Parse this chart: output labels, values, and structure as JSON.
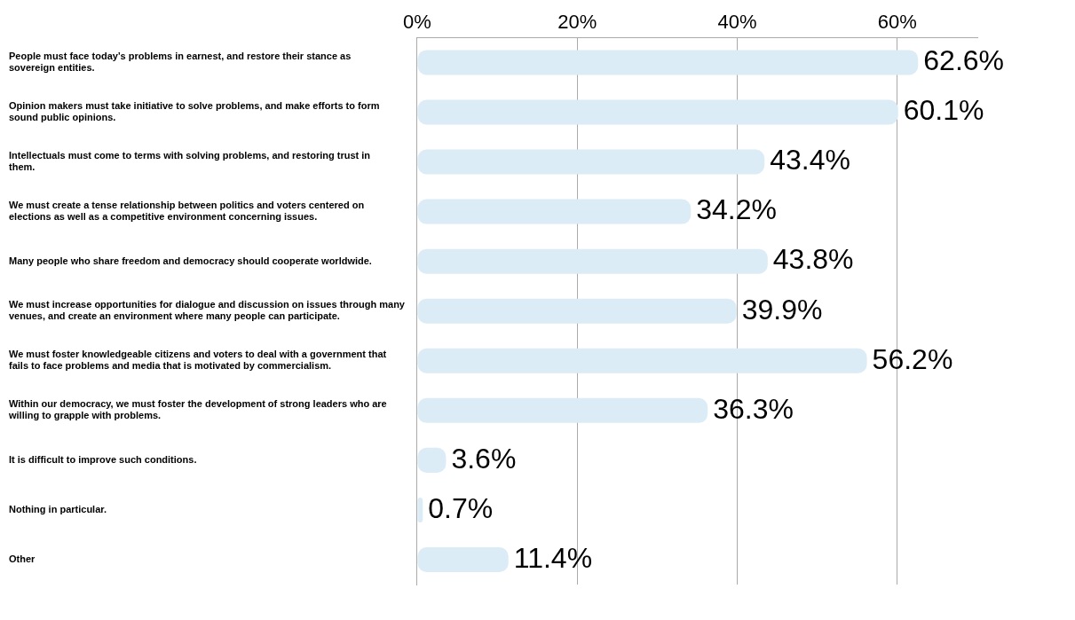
{
  "chart_data": {
    "type": "bar",
    "orientation": "horizontal",
    "categories": [
      "People must face today’s problems in earnest, and restore their stance as sovereign entities.",
      "Opinion makers must take initiative to solve problems, and make efforts to form sound public opinions.",
      "Intellectuals must come to terms with solving problems, and restoring trust in them.",
      "We must create a tense relationship between politics and voters centered on elections as well as a competitive environment concerning issues.",
      "Many people who share freedom and democracy should cooperate worldwide.",
      "We must increase opportunities for dialogue and discussion on issues through many venues, and create an environment where many people can participate.",
      "We must foster knowledgeable citizens and voters to deal with a government that fails to face problems and media that is motivated by commercialism.",
      "Within our democracy, we must foster the development of strong leaders who are willing to grapple with problems.",
      "It is difficult to improve such conditions.",
      "Nothing in particular.",
      "Other"
    ],
    "values": [
      62.6,
      60.1,
      43.4,
      34.2,
      43.8,
      39.9,
      56.2,
      36.3,
      3.6,
      0.7,
      11.4
    ],
    "value_labels": [
      "62.6%",
      "60.1%",
      "43.4%",
      "34.2%",
      "43.8%",
      "39.9%",
      "56.2%",
      "36.3%",
      "3.6%",
      "0.7%",
      "11.4%"
    ],
    "color": "#dcecf6",
    "xlim": [
      0,
      70
    ],
    "xticks": [
      {
        "value": 0,
        "label": "0%"
      },
      {
        "value": 20,
        "label": "20%"
      },
      {
        "value": 40,
        "label": "40%"
      },
      {
        "value": 60,
        "label": "60%"
      }
    ],
    "grid": "x",
    "legend": false
  }
}
